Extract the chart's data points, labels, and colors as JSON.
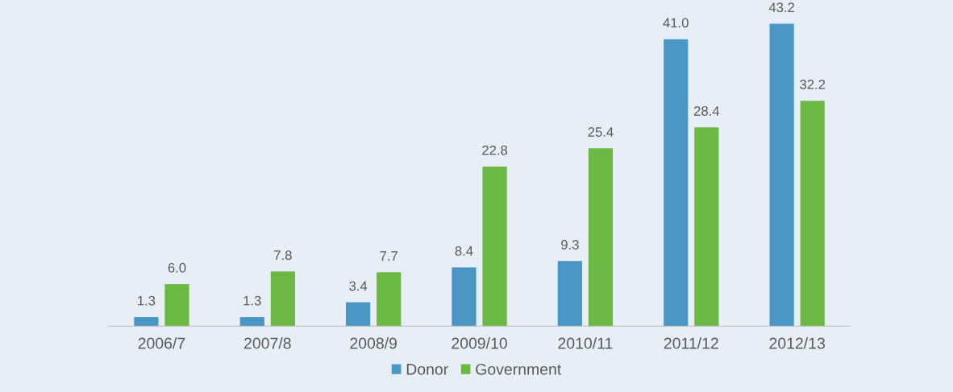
{
  "chart_data": {
    "type": "bar",
    "categories": [
      "2006/7",
      "2007/8",
      "2008/9",
      "2009/10",
      "2010/11",
      "2011/12",
      "2012/13"
    ],
    "series": [
      {
        "name": "Donor",
        "color": "#4a96c4",
        "values": [
          1.3,
          1.3,
          3.4,
          8.4,
          9.3,
          41.0,
          43.2
        ],
        "value_labels": [
          "1.3",
          "1.3",
          "3.4",
          "8.4",
          "9.3",
          "41.0",
          "43.2"
        ]
      },
      {
        "name": "Government",
        "color": "#6cb844",
        "values": [
          6.0,
          7.8,
          7.7,
          22.8,
          25.4,
          28.4,
          32.2
        ],
        "value_labels": [
          "6.0",
          "7.8",
          "7.7",
          "22.8",
          "25.4",
          "28.4",
          "32.2"
        ]
      }
    ],
    "tick_labels": "x",
    "grid": false,
    "legend": "bottom"
  }
}
